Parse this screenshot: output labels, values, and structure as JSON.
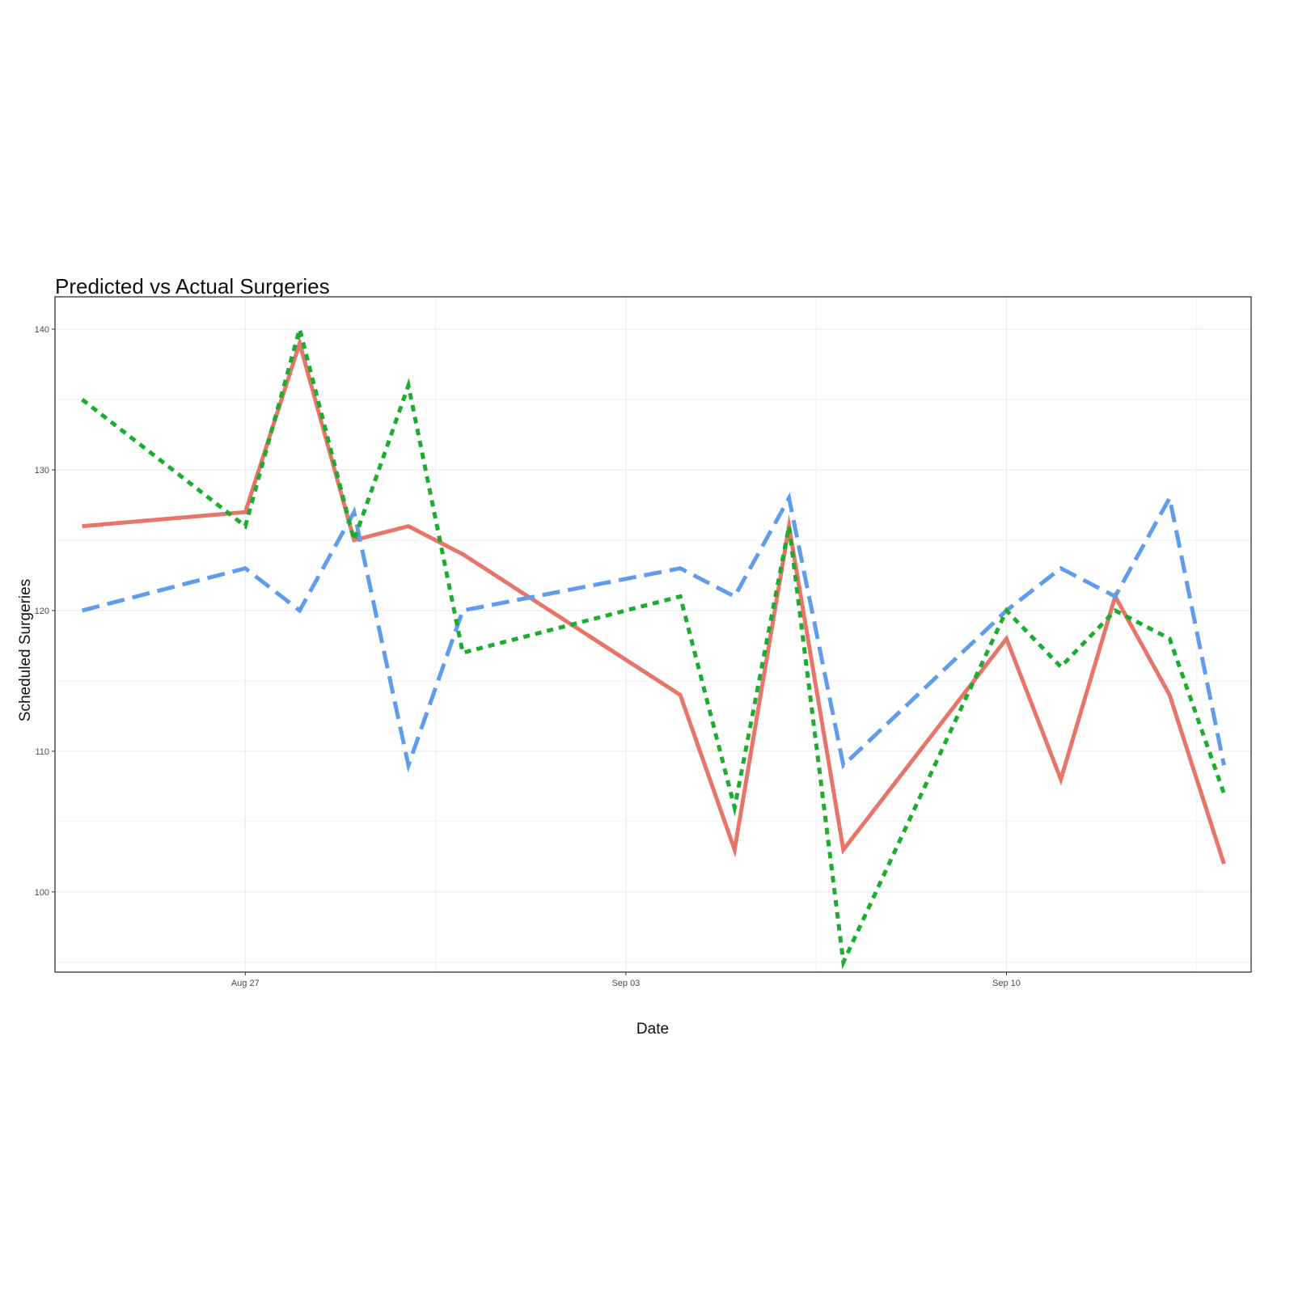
{
  "chart_data": {
    "type": "line",
    "title": "Predicted vs Actual Surgeries",
    "xlabel": "Date",
    "ylabel": "Scheduled Surgeries",
    "x": [
      "2018-08-24",
      "2018-08-27",
      "2018-08-28",
      "2018-08-29",
      "2018-08-30",
      "2018-08-31",
      "2018-09-04",
      "2018-09-05",
      "2018-09-06",
      "2018-09-07",
      "2018-09-10",
      "2018-09-11",
      "2018-09-12",
      "2018-09-13",
      "2018-09-14"
    ],
    "x_ticks": [
      {
        "date": "2018-08-27",
        "label": "Aug 27"
      },
      {
        "date": "2018-09-03",
        "label": "Sep 03"
      },
      {
        "date": "2018-09-10",
        "label": "Sep 10"
      }
    ],
    "x_range": [
      "2018-08-23 12:00",
      "2018-09-14 12:00"
    ],
    "y_ticks": [
      100,
      110,
      120,
      130,
      140
    ],
    "ylim": [
      94.3,
      142.3
    ],
    "grid": true,
    "legend": "none",
    "series": [
      {
        "color": "#E8756A",
        "line_style": "solid",
        "values": [
          126,
          127,
          139,
          125,
          126,
          124,
          114,
          103,
          126,
          103,
          118,
          108,
          121,
          114,
          102
        ]
      },
      {
        "color": "#619CEB",
        "line_style": "dashed",
        "values": [
          120,
          123,
          120,
          127,
          109,
          120,
          123,
          121,
          128,
          109,
          120,
          123,
          121,
          128,
          109
        ]
      },
      {
        "color": "#1DAD2E",
        "line_style": "dotted",
        "values": [
          135,
          126,
          140,
          125,
          136,
          117,
          121,
          106,
          126,
          95,
          120,
          116,
          120,
          118,
          107
        ]
      }
    ]
  }
}
